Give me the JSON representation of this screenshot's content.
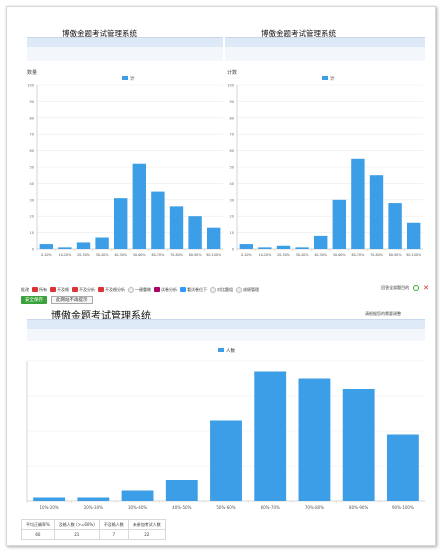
{
  "app_title": "博傲金题考试管理系统",
  "charts": [
    {
      "type": "bar",
      "ylabel": "数量",
      "legend": "计",
      "yticks": [
        "100",
        "90",
        "80",
        "70",
        "60",
        "50",
        "40",
        "30",
        "20",
        "10",
        "0"
      ],
      "ylim": [
        0,
        100
      ],
      "categories": [
        "0-10%",
        "10-20%",
        "20-30%",
        "30-40%",
        "40-50%",
        "50-60%",
        "60-70%",
        "70-80%",
        "80-90%",
        "90-100%"
      ],
      "values": [
        3,
        1,
        4,
        7,
        31,
        52,
        35,
        26,
        20,
        13
      ]
    },
    {
      "type": "bar",
      "ylabel": "计数",
      "legend": "计",
      "yticks": [
        "100",
        "90",
        "80",
        "70",
        "60",
        "50",
        "40",
        "30",
        "20",
        "10",
        "0"
      ],
      "ylim": [
        0,
        100
      ],
      "categories": [
        "0-10%",
        "10-20%",
        "20-30%",
        "30-40%",
        "40-50%",
        "50-60%",
        "60-70%",
        "70-80%",
        "80-90%",
        "90-100%"
      ],
      "values": [
        3,
        1,
        2,
        1,
        8,
        30,
        55,
        45,
        28,
        16
      ]
    },
    {
      "type": "bar",
      "legend": "人数",
      "categories": [
        "10%-20%",
        "20%-30%",
        "30%-40%",
        "40%-50%",
        "50%-60%",
        "60%-70%",
        "70%-80%",
        "80%-90%",
        "90%-100%"
      ],
      "values": [
        1,
        1,
        3,
        6,
        23,
        37,
        35,
        32,
        19
      ],
      "ylim": [
        0,
        40
      ]
    }
  ],
  "toolbar": {
    "items": [
      {
        "label": "批改",
        "color": ""
      },
      {
        "label": "所有",
        "color": "#d33"
      },
      {
        "label": "不及格",
        "color": "#d33"
      },
      {
        "label": "不及分析",
        "color": "#d33"
      },
      {
        "label": "不及格分析",
        "color": "#d33"
      },
      {
        "label": "一键重做",
        "color": "#bbb"
      },
      {
        "label": "试卷分析",
        "color": "#a06"
      },
      {
        "label": "看试卷位下",
        "color": "#39f"
      },
      {
        "label": "对比题组",
        "color": "#bbb"
      },
      {
        "label": "成绩管理",
        "color": "#bbb"
      }
    ],
    "right_text": "回答全部题目的"
  },
  "buttons": {
    "save": "安全保存",
    "popup": "此网站不再提示"
  },
  "top_right_note": "请根据您的需要调整",
  "stats": {
    "headers": [
      "平均正确率%",
      "及格人数 (>=60%)",
      "不及格人数",
      "未参加考试人数"
    ],
    "values": [
      "60",
      "21",
      "7",
      "22"
    ]
  }
}
